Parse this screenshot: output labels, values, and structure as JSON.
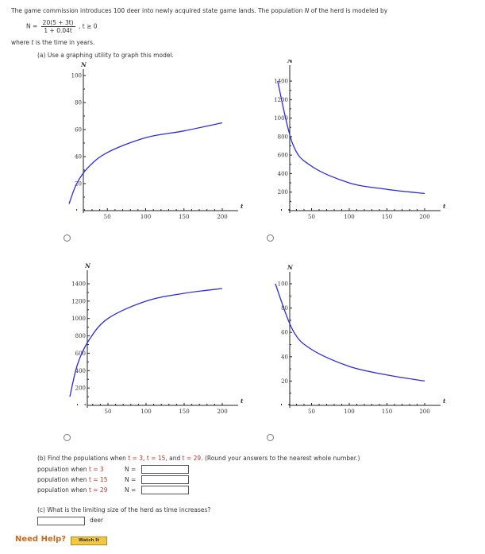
{
  "intro": {
    "text_before_var": "The game commission introduces 100 deer into newly acquired state game lands. The population ",
    "var_n": "N",
    "text_after_var": " of the herd is modeled by"
  },
  "formula": {
    "lhs": "N =",
    "numerator": "20(5 + 3t)",
    "denominator": "1 + 0.04t",
    "condition": ",  t ≥ 0"
  },
  "where": {
    "pre": "where ",
    "var": "t",
    "post": " is the time in years."
  },
  "part_a": {
    "label": "(a) Use a graphing utility to graph this model."
  },
  "graphs": [
    {
      "id": "top-left",
      "chart_data": {
        "type": "line",
        "y_axis_label": "N",
        "x_axis_label": "t",
        "y_ticks": [
          20,
          40,
          60,
          80,
          100
        ],
        "x_ticks": [
          50,
          100,
          150,
          200
        ],
        "xlim": [
          0,
          200
        ],
        "ylim": [
          0,
          100
        ],
        "curve": "increasing, approaches 75",
        "series": [
          {
            "values_x": [
              0,
              10,
              25,
              50,
              100,
              150,
              200
            ],
            "values_y": [
              5,
              20,
              32,
              43,
              54,
              59,
              65
            ]
          }
        ]
      }
    },
    {
      "id": "top-right",
      "chart_data": {
        "type": "line",
        "y_axis_label": "N",
        "x_axis_label": "t",
        "y_ticks": [
          200,
          400,
          600,
          800,
          1000,
          1200,
          1400
        ],
        "x_ticks": [
          50,
          100,
          150,
          200
        ],
        "xlim": [
          0,
          200
        ],
        "ylim": [
          0,
          1400
        ],
        "curve": "decreasing",
        "series": [
          {
            "values_x": [
              5,
              25,
              50,
              100,
              150,
              200
            ],
            "values_y": [
              1400,
              720,
              480,
              300,
              230,
              185
            ]
          }
        ]
      }
    },
    {
      "id": "bottom-left",
      "chart_data": {
        "type": "line",
        "y_axis_label": "N",
        "x_axis_label": "t",
        "y_ticks": [
          200,
          400,
          600,
          800,
          1000,
          1200,
          1400
        ],
        "x_ticks": [
          50,
          100,
          150,
          200
        ],
        "xlim": [
          0,
          200
        ],
        "ylim": [
          0,
          1400
        ],
        "curve": "increasing",
        "series": [
          {
            "values_x": [
              0,
              10,
              25,
              50,
              100,
              150,
              200
            ],
            "values_y": [
              100,
              470,
              750,
              1000,
              1200,
              1290,
              1345
            ]
          }
        ]
      }
    },
    {
      "id": "bottom-right",
      "chart_data": {
        "type": "line",
        "y_axis_label": "N",
        "x_axis_label": "t",
        "y_ticks": [
          20,
          40,
          60,
          80,
          100
        ],
        "x_ticks": [
          50,
          100,
          150,
          200
        ],
        "xlim": [
          0,
          200
        ],
        "ylim": [
          0,
          100
        ],
        "curve": "decreasing",
        "series": [
          {
            "values_x": [
              2,
              25,
              50,
              100,
              150,
              200
            ],
            "values_y": [
              100,
              62,
              46,
              32,
              25,
              20
            ]
          }
        ]
      }
    }
  ],
  "part_b": {
    "label_before": "(b) Find the populations when ",
    "t_eq_1": "t = 3",
    "sep1": ", ",
    "t_eq_2": "t = 15",
    "sep2": ", and ",
    "t_eq_3": "t = 29",
    "label_after": ". (Round your answers to the nearest whole number.)",
    "rows": [
      {
        "prefix": "population when ",
        "t_value": "t = 3",
        "n_label": "N =",
        "value": ""
      },
      {
        "prefix": "population when ",
        "t_value": "t = 15",
        "n_label": "N =",
        "value": ""
      },
      {
        "prefix": "population when ",
        "t_value": "t = 29",
        "n_label": "N =",
        "value": ""
      }
    ]
  },
  "part_c": {
    "label": "(c) What is the limiting size of the herd as time increases?",
    "value": "",
    "unit": "deer"
  },
  "help": {
    "need_help": "Need Help?",
    "watch_button": "Watch It"
  },
  "colors": {
    "curve": "#2a2ae6",
    "axes": "#222222",
    "highlight": "#c8312a",
    "need_help": "#c86a1a",
    "watch_button_bg": "#f2c744"
  }
}
